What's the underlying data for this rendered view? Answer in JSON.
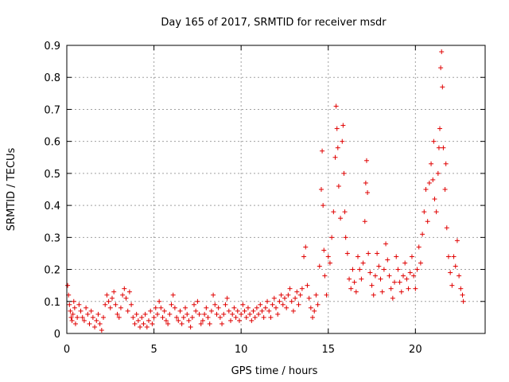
{
  "chart_data": {
    "type": "scatter",
    "title": "Day 165 of 2017, SRMTID for receiver msdr",
    "xlabel": "GPS time / hours",
    "ylabel": "SRMTID / TECUs",
    "xlim": [
      0,
      24
    ],
    "ylim": [
      0,
      0.9
    ],
    "xticks": [
      0,
      5,
      10,
      15,
      20
    ],
    "xtick_labels": [
      "0",
      "5",
      "10",
      "15",
      "20"
    ],
    "yticks": [
      0,
      0.1,
      0.2,
      0.3,
      0.4,
      0.5,
      0.6,
      0.7,
      0.8,
      0.9
    ],
    "ytick_labels": [
      "0",
      "0.1",
      "0.2",
      "0.3",
      "0.4",
      "0.5",
      "0.6",
      "0.7",
      "0.8",
      "0.9"
    ],
    "grid": true,
    "marker": "+",
    "color": "#e00000",
    "series": [
      {
        "name": "SRMTID",
        "points": [
          [
            0.05,
            0.15
          ],
          [
            0.1,
            0.12
          ],
          [
            0.15,
            0.09
          ],
          [
            0.2,
            0.07
          ],
          [
            0.25,
            0.05
          ],
          [
            0.3,
            0.04
          ],
          [
            0.35,
            0.06
          ],
          [
            0.4,
            0.1
          ],
          [
            0.45,
            0.08
          ],
          [
            0.5,
            0.03
          ],
          [
            0.6,
            0.05
          ],
          [
            0.7,
            0.09
          ],
          [
            0.8,
            0.07
          ],
          [
            0.9,
            0.05
          ],
          [
            1.0,
            0.04
          ],
          [
            1.1,
            0.08
          ],
          [
            1.2,
            0.06
          ],
          [
            1.3,
            0.03
          ],
          [
            1.4,
            0.07
          ],
          [
            1.5,
            0.05
          ],
          [
            1.6,
            0.02
          ],
          [
            1.7,
            0.04
          ],
          [
            1.8,
            0.06
          ],
          [
            1.9,
            0.03
          ],
          [
            2.0,
            0.01
          ],
          [
            2.1,
            0.05
          ],
          [
            2.2,
            0.09
          ],
          [
            2.3,
            0.12
          ],
          [
            2.4,
            0.1
          ],
          [
            2.5,
            0.08
          ],
          [
            2.6,
            0.11
          ],
          [
            2.7,
            0.13
          ],
          [
            2.8,
            0.09
          ],
          [
            2.9,
            0.06
          ],
          [
            3.0,
            0.05
          ],
          [
            3.1,
            0.08
          ],
          [
            3.2,
            0.12
          ],
          [
            3.3,
            0.14
          ],
          [
            3.4,
            0.11
          ],
          [
            3.5,
            0.07
          ],
          [
            3.6,
            0.13
          ],
          [
            3.7,
            0.09
          ],
          [
            3.8,
            0.05
          ],
          [
            3.9,
            0.03
          ],
          [
            4.0,
            0.06
          ],
          [
            4.1,
            0.04
          ],
          [
            4.2,
            0.02
          ],
          [
            4.3,
            0.05
          ],
          [
            4.4,
            0.03
          ],
          [
            4.5,
            0.06
          ],
          [
            4.6,
            0.02
          ],
          [
            4.7,
            0.04
          ],
          [
            4.8,
            0.07
          ],
          [
            4.9,
            0.03
          ],
          [
            5.0,
            0.05
          ],
          [
            5.1,
            0.08
          ],
          [
            5.2,
            0.06
          ],
          [
            5.3,
            0.1
          ],
          [
            5.4,
            0.08
          ],
          [
            5.5,
            0.05
          ],
          [
            5.6,
            0.07
          ],
          [
            5.7,
            0.04
          ],
          [
            5.8,
            0.03
          ],
          [
            5.9,
            0.06
          ],
          [
            6.0,
            0.09
          ],
          [
            6.1,
            0.12
          ],
          [
            6.2,
            0.08
          ],
          [
            6.3,
            0.05
          ],
          [
            6.4,
            0.04
          ],
          [
            6.5,
            0.07
          ],
          [
            6.6,
            0.03
          ],
          [
            6.7,
            0.05
          ],
          [
            6.8,
            0.08
          ],
          [
            6.9,
            0.06
          ],
          [
            7.0,
            0.04
          ],
          [
            7.1,
            0.02
          ],
          [
            7.2,
            0.05
          ],
          [
            7.3,
            0.09
          ],
          [
            7.4,
            0.07
          ],
          [
            7.5,
            0.1
          ],
          [
            7.6,
            0.06
          ],
          [
            7.7,
            0.03
          ],
          [
            7.8,
            0.04
          ],
          [
            7.9,
            0.06
          ],
          [
            8.0,
            0.08
          ],
          [
            8.1,
            0.05
          ],
          [
            8.2,
            0.03
          ],
          [
            8.3,
            0.07
          ],
          [
            8.4,
            0.12
          ],
          [
            8.5,
            0.09
          ],
          [
            8.6,
            0.06
          ],
          [
            8.7,
            0.08
          ],
          [
            8.8,
            0.05
          ],
          [
            8.9,
            0.03
          ],
          [
            9.0,
            0.06
          ],
          [
            9.1,
            0.09
          ],
          [
            9.2,
            0.11
          ],
          [
            9.3,
            0.07
          ],
          [
            9.4,
            0.04
          ],
          [
            9.5,
            0.06
          ],
          [
            9.6,
            0.08
          ],
          [
            9.7,
            0.05
          ],
          [
            9.8,
            0.07
          ],
          [
            9.9,
            0.04
          ],
          [
            10.0,
            0.06
          ],
          [
            10.1,
            0.09
          ],
          [
            10.2,
            0.07
          ],
          [
            10.3,
            0.05
          ],
          [
            10.4,
            0.08
          ],
          [
            10.5,
            0.06
          ],
          [
            10.6,
            0.04
          ],
          [
            10.7,
            0.07
          ],
          [
            10.8,
            0.05
          ],
          [
            10.9,
            0.08
          ],
          [
            11.0,
            0.06
          ],
          [
            11.1,
            0.09
          ],
          [
            11.2,
            0.07
          ],
          [
            11.3,
            0.05
          ],
          [
            11.4,
            0.08
          ],
          [
            11.5,
            0.1
          ],
          [
            11.6,
            0.07
          ],
          [
            11.7,
            0.05
          ],
          [
            11.8,
            0.09
          ],
          [
            11.9,
            0.11
          ],
          [
            12.0,
            0.08
          ],
          [
            12.1,
            0.06
          ],
          [
            12.2,
            0.1
          ],
          [
            12.3,
            0.12
          ],
          [
            12.4,
            0.09
          ],
          [
            12.5,
            0.11
          ],
          [
            12.6,
            0.08
          ],
          [
            12.7,
            0.12
          ],
          [
            12.8,
            0.14
          ],
          [
            12.9,
            0.1
          ],
          [
            13.0,
            0.07
          ],
          [
            13.1,
            0.11
          ],
          [
            13.2,
            0.13
          ],
          [
            13.3,
            0.09
          ],
          [
            13.4,
            0.12
          ],
          [
            13.5,
            0.14
          ],
          [
            13.6,
            0.24
          ],
          [
            13.7,
            0.27
          ],
          [
            13.8,
            0.15
          ],
          [
            13.9,
            0.11
          ],
          [
            14.0,
            0.08
          ],
          [
            14.1,
            0.05
          ],
          [
            14.2,
            0.07
          ],
          [
            14.3,
            0.12
          ],
          [
            14.4,
            0.09
          ],
          [
            14.5,
            0.21
          ],
          [
            14.6,
            0.45
          ],
          [
            14.65,
            0.57
          ],
          [
            14.7,
            0.4
          ],
          [
            14.75,
            0.26
          ],
          [
            14.8,
            0.18
          ],
          [
            14.9,
            0.12
          ],
          [
            15.0,
            0.24
          ],
          [
            15.1,
            0.22
          ],
          [
            15.2,
            0.3
          ],
          [
            15.3,
            0.38
          ],
          [
            15.4,
            0.55
          ],
          [
            15.45,
            0.71
          ],
          [
            15.5,
            0.64
          ],
          [
            15.55,
            0.58
          ],
          [
            15.6,
            0.46
          ],
          [
            15.7,
            0.36
          ],
          [
            15.8,
            0.6
          ],
          [
            15.85,
            0.65
          ],
          [
            15.9,
            0.5
          ],
          [
            15.95,
            0.38
          ],
          [
            16.0,
            0.3
          ],
          [
            16.1,
            0.25
          ],
          [
            16.2,
            0.17
          ],
          [
            16.3,
            0.14
          ],
          [
            16.4,
            0.2
          ],
          [
            16.5,
            0.16
          ],
          [
            16.6,
            0.13
          ],
          [
            16.7,
            0.24
          ],
          [
            16.8,
            0.2
          ],
          [
            16.9,
            0.17
          ],
          [
            17.0,
            0.22
          ],
          [
            17.1,
            0.35
          ],
          [
            17.15,
            0.47
          ],
          [
            17.2,
            0.54
          ],
          [
            17.25,
            0.44
          ],
          [
            17.3,
            0.25
          ],
          [
            17.4,
            0.19
          ],
          [
            17.5,
            0.15
          ],
          [
            17.6,
            0.12
          ],
          [
            17.7,
            0.18
          ],
          [
            17.8,
            0.25
          ],
          [
            17.9,
            0.21
          ],
          [
            18.0,
            0.17
          ],
          [
            18.1,
            0.13
          ],
          [
            18.2,
            0.2
          ],
          [
            18.3,
            0.28
          ],
          [
            18.4,
            0.23
          ],
          [
            18.5,
            0.18
          ],
          [
            18.6,
            0.14
          ],
          [
            18.7,
            0.11
          ],
          [
            18.8,
            0.16
          ],
          [
            18.9,
            0.24
          ],
          [
            19.0,
            0.2
          ],
          [
            19.1,
            0.16
          ],
          [
            19.2,
            0.13
          ],
          [
            19.3,
            0.18
          ],
          [
            19.4,
            0.22
          ],
          [
            19.5,
            0.17
          ],
          [
            19.6,
            0.14
          ],
          [
            19.7,
            0.19
          ],
          [
            19.8,
            0.24
          ],
          [
            19.9,
            0.18
          ],
          [
            20.0,
            0.14
          ],
          [
            20.1,
            0.2
          ],
          [
            20.2,
            0.27
          ],
          [
            20.3,
            0.22
          ],
          [
            20.4,
            0.31
          ],
          [
            20.5,
            0.38
          ],
          [
            20.6,
            0.45
          ],
          [
            20.7,
            0.35
          ],
          [
            20.8,
            0.47
          ],
          [
            20.9,
            0.53
          ],
          [
            21.0,
            0.48
          ],
          [
            21.05,
            0.6
          ],
          [
            21.1,
            0.42
          ],
          [
            21.2,
            0.38
          ],
          [
            21.3,
            0.5
          ],
          [
            21.35,
            0.58
          ],
          [
            21.4,
            0.64
          ],
          [
            21.45,
            0.83
          ],
          [
            21.5,
            0.88
          ],
          [
            21.55,
            0.77
          ],
          [
            21.6,
            0.58
          ],
          [
            21.7,
            0.45
          ],
          [
            21.75,
            0.53
          ],
          [
            21.8,
            0.33
          ],
          [
            21.9,
            0.24
          ],
          [
            22.0,
            0.19
          ],
          [
            22.1,
            0.15
          ],
          [
            22.2,
            0.24
          ],
          [
            22.3,
            0.21
          ],
          [
            22.4,
            0.29
          ],
          [
            22.5,
            0.18
          ],
          [
            22.6,
            0.14
          ],
          [
            22.7,
            0.12
          ],
          [
            22.75,
            0.1
          ]
        ]
      }
    ]
  }
}
